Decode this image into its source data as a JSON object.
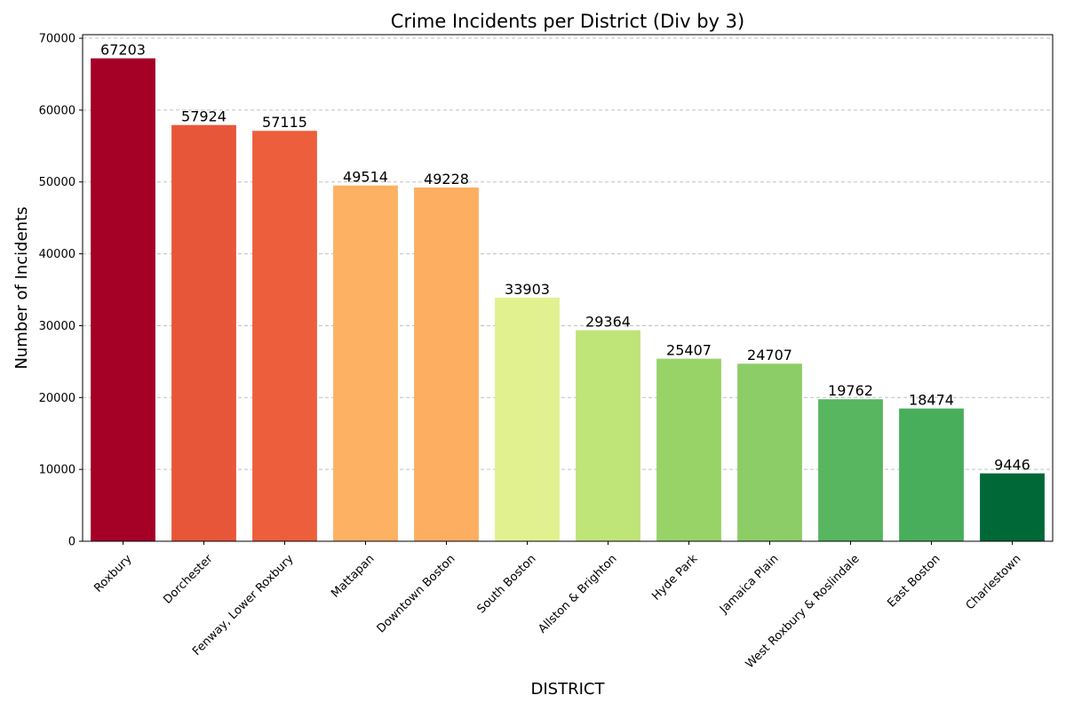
{
  "chart_data": {
    "type": "bar",
    "title": "Crime Incidents per District (Div by 3)",
    "xlabel": "DISTRICT",
    "ylabel": "Number of Incidents",
    "categories": [
      "Roxbury",
      "Dorchester",
      "Fenway, Lower Roxbury",
      "Mattapan",
      "Downtown Boston",
      "South Boston",
      "Allston & Brighton",
      "Hyde Park",
      "Jamaica Plain",
      "West Roxbury & Roslindale",
      "East Boston",
      "Charlestown"
    ],
    "values": [
      67203,
      57924,
      57115,
      49514,
      49228,
      33903,
      29364,
      25407,
      24707,
      19762,
      18474,
      9446
    ],
    "bar_labels": [
      "67203",
      "57924",
      "57115",
      "49514",
      "49228",
      "33903",
      "29364",
      "25407",
      "24707",
      "19762",
      "18474",
      "9446"
    ],
    "colors": [
      "#a50026",
      "#e8563a",
      "#ec5e3c",
      "#fdb163",
      "#fdae61",
      "#e1f18f",
      "#bfe478",
      "#98d368",
      "#8ccd67",
      "#57b65f",
      "#48ae5c",
      "#006837"
    ],
    "ylim": [
      0,
      70500
    ],
    "yticks": [
      0,
      10000,
      20000,
      30000,
      40000,
      50000,
      60000,
      70000
    ],
    "ytick_labels": [
      "0",
      "10000",
      "20000",
      "30000",
      "40000",
      "50000",
      "60000",
      "70000"
    ],
    "grid": "y-dashed",
    "legend": "none"
  }
}
